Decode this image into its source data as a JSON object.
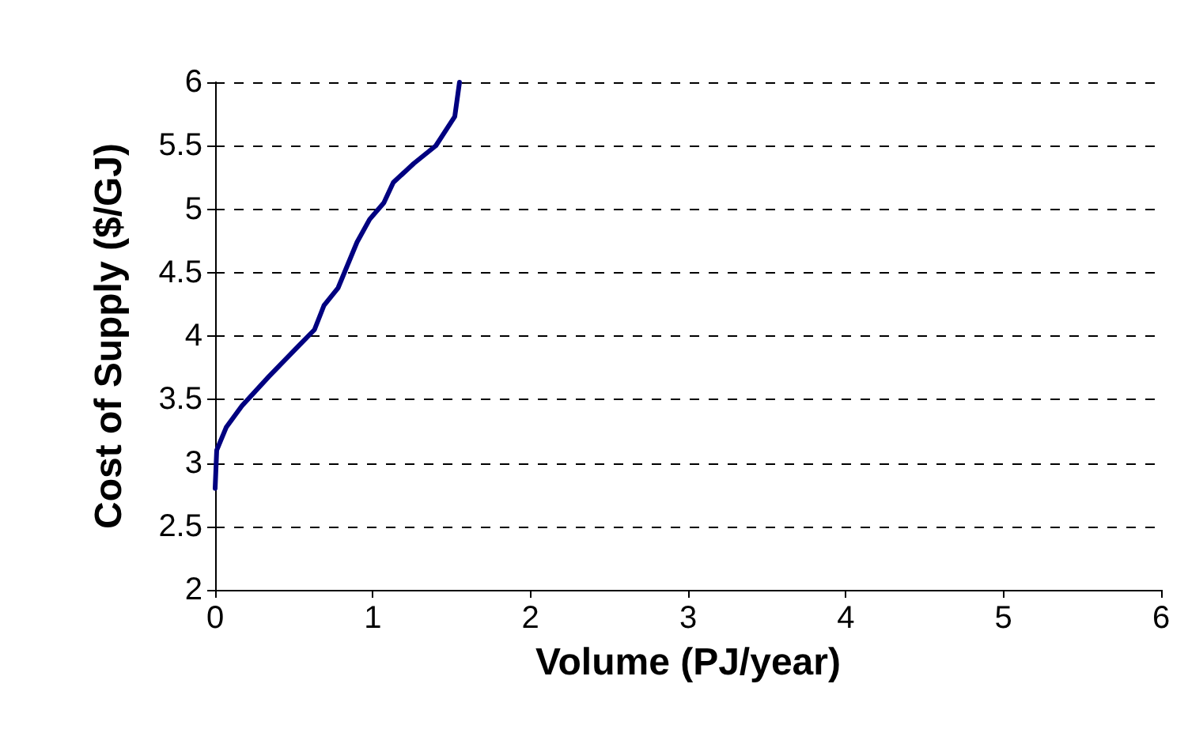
{
  "chart_data": {
    "type": "line",
    "xlabel": "Volume (PJ/year)",
    "ylabel": "Cost of Supply ($/GJ)",
    "series": [
      {
        "color": "#000080",
        "x": [
          0,
          0.01,
          0.07,
          0.17,
          0.34,
          0.52,
          0.63,
          0.69,
          0.78,
          0.9,
          0.98,
          1.07,
          1.13,
          1.26,
          1.4,
          1.52,
          1.55
        ],
        "values": [
          2.8,
          3.1,
          3.28,
          3.45,
          3.68,
          3.91,
          4.05,
          4.24,
          4.38,
          4.74,
          4.92,
          5.05,
          5.21,
          5.36,
          5.5,
          5.73,
          6
        ]
      }
    ],
    "xlim": [
      0,
      6
    ],
    "xticks": [
      0,
      1,
      2,
      3,
      4,
      5,
      6
    ],
    "ylim": [
      2,
      6
    ],
    "yticks": [
      2,
      2.5,
      3,
      3.5,
      4,
      4.5,
      5,
      5.5,
      6
    ],
    "grid": "y",
    "marker": "none",
    "line_style": "solid"
  }
}
